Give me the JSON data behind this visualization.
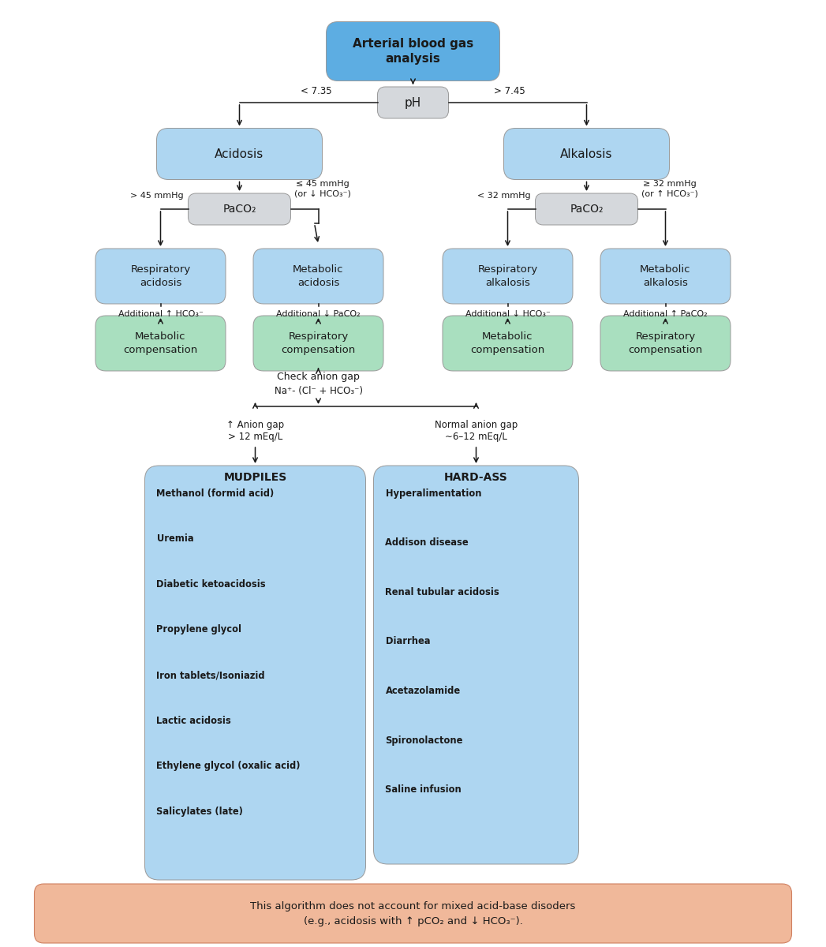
{
  "title": "Arterial blood gas\nanalysis",
  "bg_color": "#ffffff",
  "box_blue_light": "#aed6f1",
  "box_blue_title": "#5dade2",
  "box_gray": "#d5d8dc",
  "box_green": "#a9dfbf",
  "box_salmon": "#f0b89a",
  "text_color": "#1a1a1a",
  "footnote_line1": "This algorithm does not account for mixed acid-base disoders",
  "footnote_line2": "(e.g., acidosis with ↑ pCO₂ and ↓ HCO₃⁻).",
  "mudpiles_title": "MUDPILES",
  "mudpiles_items": [
    "Methanol (formid acid)",
    "Uremia",
    "Diabetic ketoacidosis",
    "Propylene glycol",
    "Iron tablets/Isoniazid",
    "Lactic acidosis",
    "Ethylene glycol (oxalic acid)",
    "Salicylates (late)"
  ],
  "hardass_title": "HARD-ASS",
  "hardass_items": [
    "Hyperalimentation",
    "Addison disease",
    "Renal tubular acidosis",
    "Diarrhea",
    "Acetazolamide",
    "Spironolactone",
    "Saline infusion"
  ]
}
